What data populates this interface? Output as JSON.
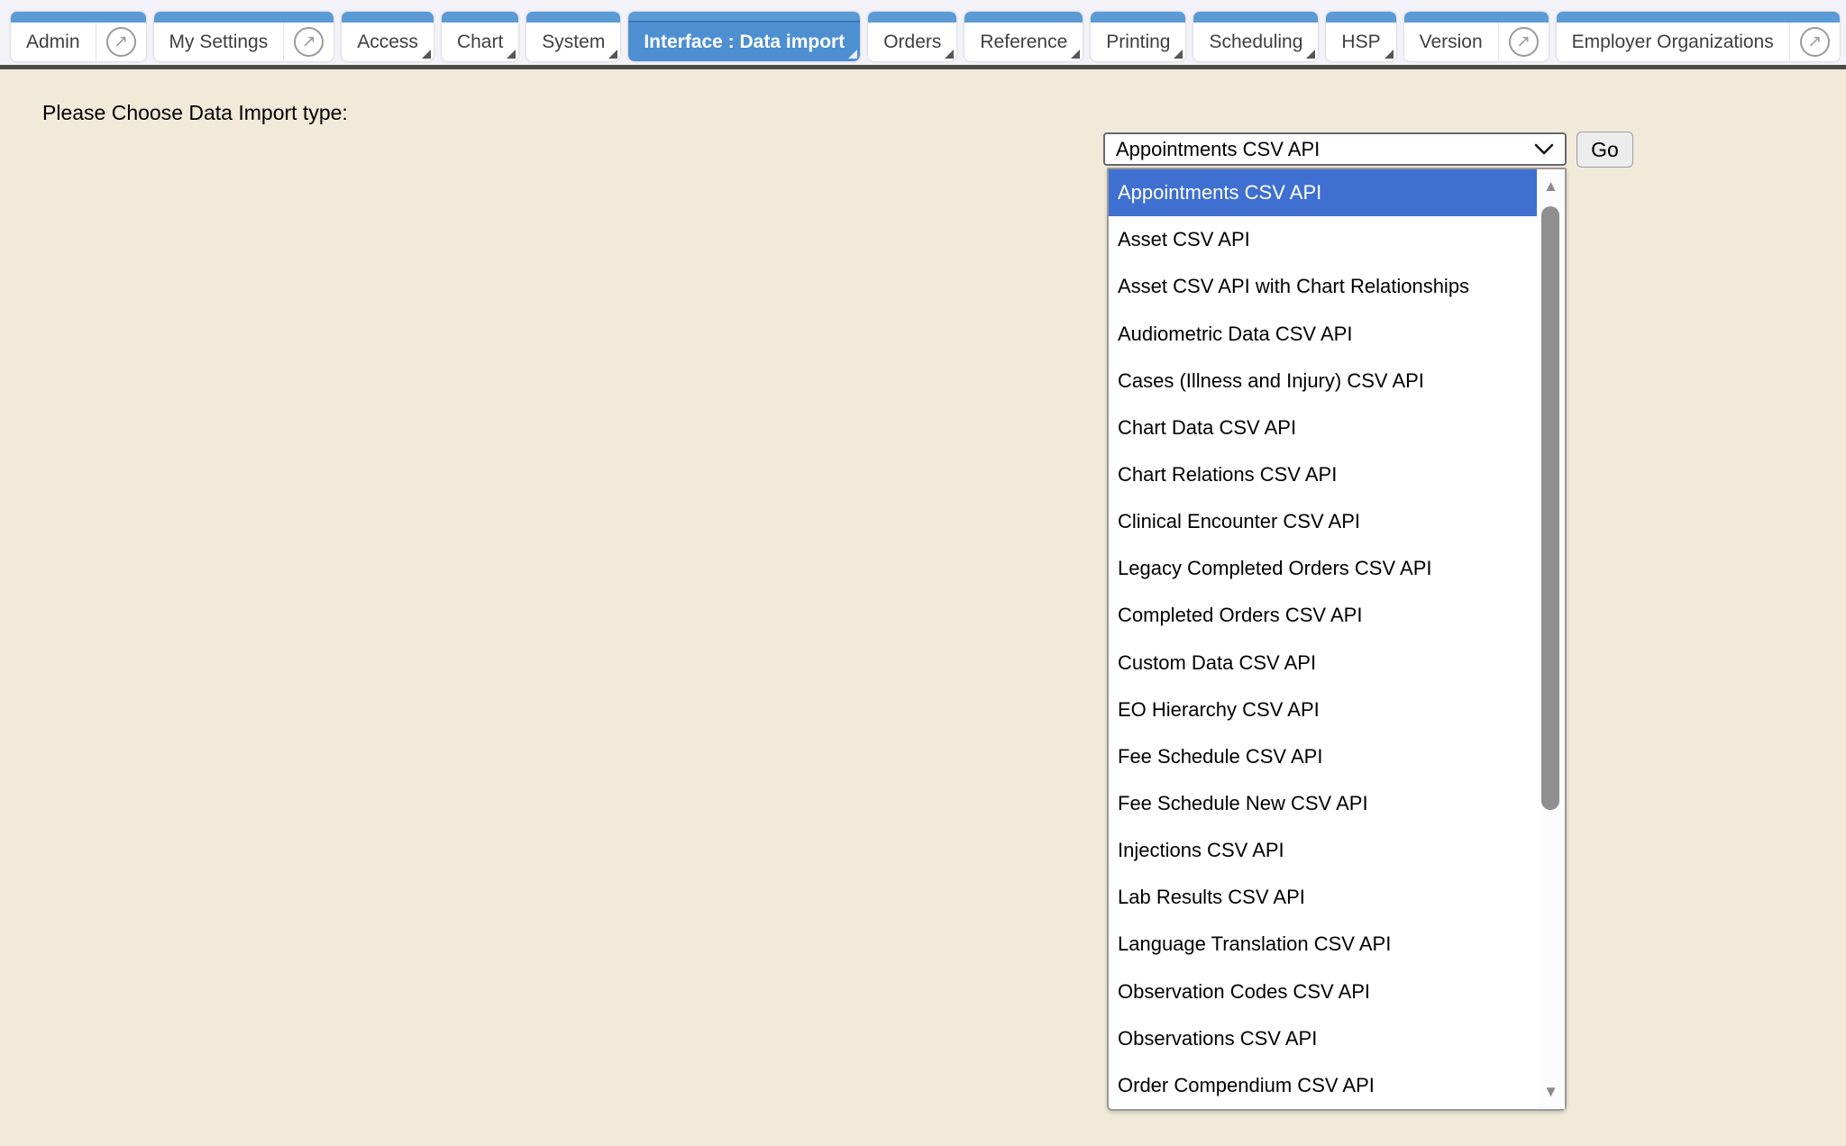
{
  "navbar": {
    "tabs": [
      {
        "label": "Admin",
        "type": "external",
        "active": false
      },
      {
        "label": "My Settings",
        "type": "external",
        "active": false
      },
      {
        "label": "Access",
        "type": "menu",
        "active": false
      },
      {
        "label": "Chart",
        "type": "menu",
        "active": false
      },
      {
        "label": "System",
        "type": "menu",
        "active": false
      },
      {
        "label": "Interface : Data import",
        "type": "menu",
        "active": true
      },
      {
        "label": "Orders",
        "type": "menu",
        "active": false
      },
      {
        "label": "Reference",
        "type": "menu",
        "active": false
      },
      {
        "label": "Printing",
        "type": "menu",
        "active": false
      },
      {
        "label": "Scheduling",
        "type": "menu",
        "active": false
      },
      {
        "label": "HSP",
        "type": "menu",
        "active": false
      },
      {
        "label": "Version",
        "type": "external",
        "active": false
      },
      {
        "label": "Employer Organizations",
        "type": "external",
        "active": false
      }
    ]
  },
  "main": {
    "prompt": "Please Choose Data Import type:",
    "go_label": "Go",
    "select": {
      "value": "Appointments CSV API",
      "selected_index": 0,
      "options": [
        "Appointments CSV API",
        "Asset CSV API",
        "Asset CSV API with Chart Relationships",
        "Audiometric Data CSV API",
        "Cases (Illness and Injury) CSV API",
        "Chart Data CSV API",
        "Chart Relations CSV API",
        "Clinical Encounter CSV API",
        "Legacy Completed Orders CSV API",
        "Completed Orders CSV API",
        "Custom Data CSV API",
        "EO Hierarchy CSV API",
        "Fee Schedule CSV API",
        "Fee Schedule New CSV API",
        "Injections CSV API",
        "Lab Results CSV API",
        "Language Translation CSV API",
        "Observation Codes CSV API",
        "Observations CSV API",
        "Order Compendium CSV API"
      ]
    }
  },
  "icons": {
    "external_link": "↗",
    "scroll_up": "▲",
    "scroll_down": "▼"
  },
  "colors": {
    "nav_bg": "#f2f2f8",
    "strip_blue": "#5b9bd5",
    "active_blue": "#4e8fd2",
    "tab_text": "#3f3f3f",
    "separator": "#4b4b46",
    "content_bg": "#f1ead9",
    "highlight_blue": "#3f6fd1",
    "scroll_gray": "#8f8f8f"
  }
}
